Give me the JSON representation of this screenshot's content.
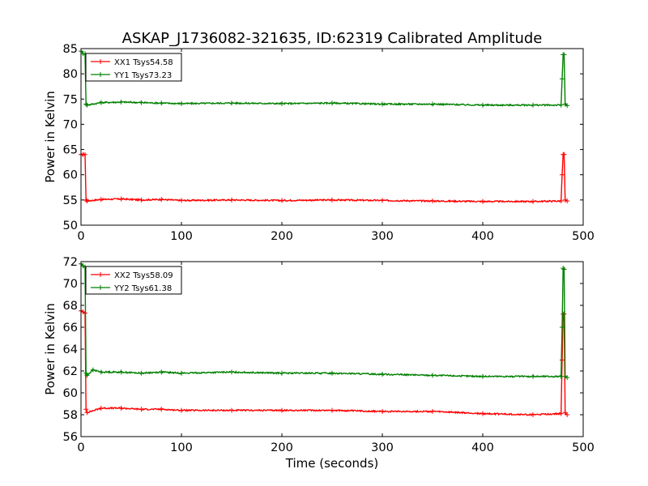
{
  "figure": {
    "title": "ASKAP_J1736082-321635, ID:62319 Calibrated Amplitude",
    "xlabel": "Time (seconds)"
  },
  "colors": {
    "xx": "#ff0000",
    "yy": "#008000"
  },
  "chart_data": [
    {
      "type": "line",
      "ylabel": "Power in Kelvin",
      "xlim": [
        0,
        500
      ],
      "ylim": [
        50,
        85
      ],
      "xticks": [
        0,
        100,
        200,
        300,
        400,
        500
      ],
      "yticks": [
        50,
        55,
        60,
        65,
        70,
        75,
        80,
        85
      ],
      "grid": false,
      "legend": "top-left",
      "series": [
        {
          "name": "XX1 Tsys54.58",
          "color": "#ff0000",
          "x": [
            0,
            2,
            4,
            5,
            6,
            20,
            40,
            60,
            80,
            100,
            150,
            200,
            250,
            300,
            350,
            400,
            450,
            478,
            479,
            480,
            481,
            482,
            484
          ],
          "y": [
            64,
            64,
            64,
            55,
            54.8,
            55.1,
            55.2,
            55.0,
            55.1,
            54.9,
            55.0,
            54.9,
            55.0,
            54.9,
            54.8,
            54.7,
            54.7,
            54.8,
            60,
            64,
            64,
            55,
            54.8
          ]
        },
        {
          "name": "YY1 Tsys73.23",
          "color": "#008000",
          "x": [
            0,
            2,
            4,
            5,
            6,
            20,
            40,
            60,
            80,
            100,
            150,
            200,
            250,
            300,
            350,
            400,
            450,
            478,
            479,
            480,
            481,
            482,
            484
          ],
          "y": [
            84.5,
            84,
            84,
            74,
            73.8,
            74.3,
            74.4,
            74.3,
            74.2,
            74.1,
            74.2,
            74.1,
            74.2,
            74.0,
            74.0,
            73.8,
            73.8,
            73.8,
            79,
            83.8,
            83.8,
            74,
            73.7
          ]
        }
      ]
    },
    {
      "type": "line",
      "ylabel": "Power in Kelvin",
      "xlim": [
        0,
        500
      ],
      "ylim": [
        56,
        72
      ],
      "xticks": [
        0,
        100,
        200,
        300,
        400,
        500
      ],
      "yticks": [
        56,
        58,
        60,
        62,
        64,
        66,
        68,
        70,
        72
      ],
      "grid": false,
      "legend": "top-left",
      "series": [
        {
          "name": "XX2 Tsys58.09",
          "color": "#ff0000",
          "x": [
            0,
            2,
            4,
            5,
            6,
            20,
            40,
            60,
            80,
            100,
            150,
            200,
            250,
            300,
            350,
            400,
            450,
            478,
            479,
            480,
            481,
            482,
            484
          ],
          "y": [
            67.5,
            67.4,
            67.3,
            58.5,
            58.2,
            58.6,
            58.6,
            58.5,
            58.5,
            58.4,
            58.4,
            58.4,
            58.4,
            58.3,
            58.3,
            58.1,
            58.0,
            58.1,
            63,
            67.2,
            67.2,
            58.2,
            58.0
          ]
        },
        {
          "name": "YY2 Tsys61.38",
          "color": "#008000",
          "x": [
            0,
            2,
            4,
            5,
            6,
            12,
            20,
            40,
            60,
            80,
            100,
            150,
            200,
            250,
            300,
            350,
            400,
            450,
            478,
            479,
            480,
            481,
            482,
            484
          ],
          "y": [
            71.8,
            71.6,
            71.5,
            61.8,
            61.6,
            62.1,
            61.9,
            61.9,
            61.8,
            61.9,
            61.8,
            61.9,
            61.8,
            61.8,
            61.7,
            61.6,
            61.5,
            61.5,
            61.5,
            66,
            71.4,
            71.3,
            61.5,
            61.4
          ]
        }
      ]
    }
  ]
}
